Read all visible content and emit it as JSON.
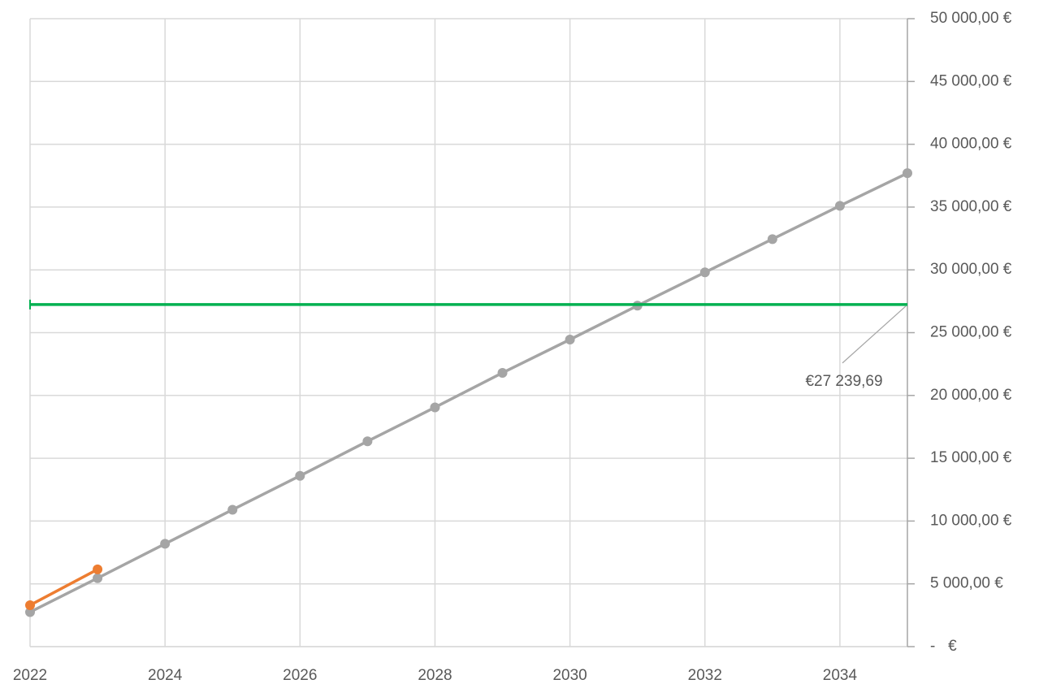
{
  "chart_data": {
    "type": "line",
    "xlim": [
      2022,
      2035
    ],
    "xticks": [
      2022,
      2024,
      2026,
      2028,
      2030,
      2032,
      2034
    ],
    "ylim": [
      0,
      50000
    ],
    "y_axis_side": "right",
    "yticks": [
      {
        "value": 0,
        "label": "-   €"
      },
      {
        "value": 5000,
        "label": "5 000,00 €"
      },
      {
        "value": 10000,
        "label": "10 000,00 €"
      },
      {
        "value": 15000,
        "label": "15 000,00 €"
      },
      {
        "value": 20000,
        "label": "20 000,00 €"
      },
      {
        "value": 25000,
        "label": "25 000,00 €"
      },
      {
        "value": 30000,
        "label": "30 000,00 €"
      },
      {
        "value": 35000,
        "label": "35 000,00 €"
      },
      {
        "value": 40000,
        "label": "40 000,00 €"
      },
      {
        "value": 45000,
        "label": "45 000,00 €"
      },
      {
        "value": 50000,
        "label": "50 000,00 €"
      }
    ],
    "grid": true,
    "series": [
      {
        "color": "#a5a5a5",
        "markers": true,
        "x": [
          2022,
          2023,
          2024,
          2025,
          2026,
          2027,
          2028,
          2029,
          2030,
          2031,
          2032,
          2033,
          2034,
          2035
        ],
        "values": [
          2750,
          5450,
          8190,
          10900,
          13600,
          16350,
          19050,
          21800,
          24450,
          27150,
          29800,
          32450,
          35100,
          37700
        ]
      },
      {
        "color": "#ed7d31",
        "markers": true,
        "x": [
          2022,
          2023
        ],
        "values": [
          3300,
          6150
        ]
      },
      {
        "color": "#00b050",
        "markers": false,
        "x": [
          2022,
          2035
        ],
        "values": [
          27239.69,
          27239.69
        ],
        "value_labels": [
          null,
          "€27 239,69"
        ]
      }
    ]
  }
}
